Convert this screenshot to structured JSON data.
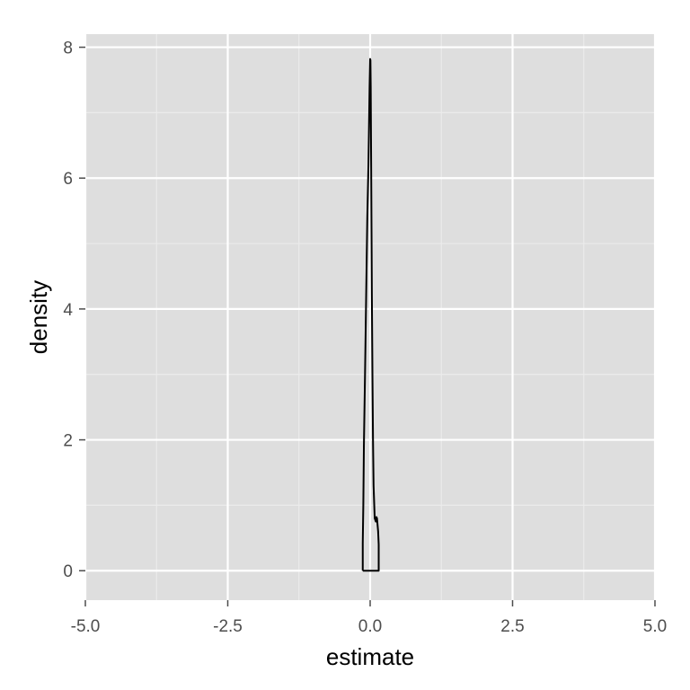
{
  "chart_data": {
    "type": "line",
    "title": "",
    "xlabel": "estimate",
    "ylabel": "density",
    "xlim": [
      -5.0,
      5.0
    ],
    "ylim": [
      -0.45,
      8.2
    ],
    "x_ticks": [
      -5.0,
      -2.5,
      0.0,
      2.5,
      5.0
    ],
    "x_tick_labels": [
      "-5.0",
      "-2.5",
      "0.0",
      "2.5",
      "5.0"
    ],
    "y_ticks": [
      0,
      2,
      4,
      6,
      8
    ],
    "y_tick_labels": [
      "0",
      "2",
      "4",
      "6",
      "8"
    ],
    "x_minor": [
      -3.75,
      -1.25,
      1.25,
      3.75
    ],
    "y_minor": [
      1,
      3,
      5,
      7
    ],
    "grid": true,
    "colors": {
      "panel": "#dedede",
      "grid_major": "#ffffff",
      "grid_minor": "#ebebeb",
      "line": "#000000",
      "tick": "#4d4d4d"
    },
    "series": [
      {
        "x": [
          -0.13,
          -0.13,
          -0.12,
          -0.11,
          -0.09,
          -0.07,
          -0.05,
          -0.03,
          -0.02,
          -0.01,
          0.0,
          0.005,
          0.01,
          0.015,
          0.02,
          0.025,
          0.03,
          0.04,
          0.05,
          0.06,
          0.08,
          0.1,
          0.11,
          0.12,
          0.13,
          0.14,
          0.15,
          0.15,
          -0.13
        ],
        "y": [
          0,
          0.42,
          1.0,
          1.9,
          3.0,
          4.2,
          5.4,
          6.2,
          6.8,
          7.4,
          7.82,
          7.8,
          7.4,
          6.6,
          5.8,
          5.0,
          4.2,
          3.0,
          2.0,
          1.3,
          0.8,
          0.75,
          0.82,
          0.8,
          0.7,
          0.6,
          0.4,
          0,
          0
        ]
      }
    ]
  }
}
